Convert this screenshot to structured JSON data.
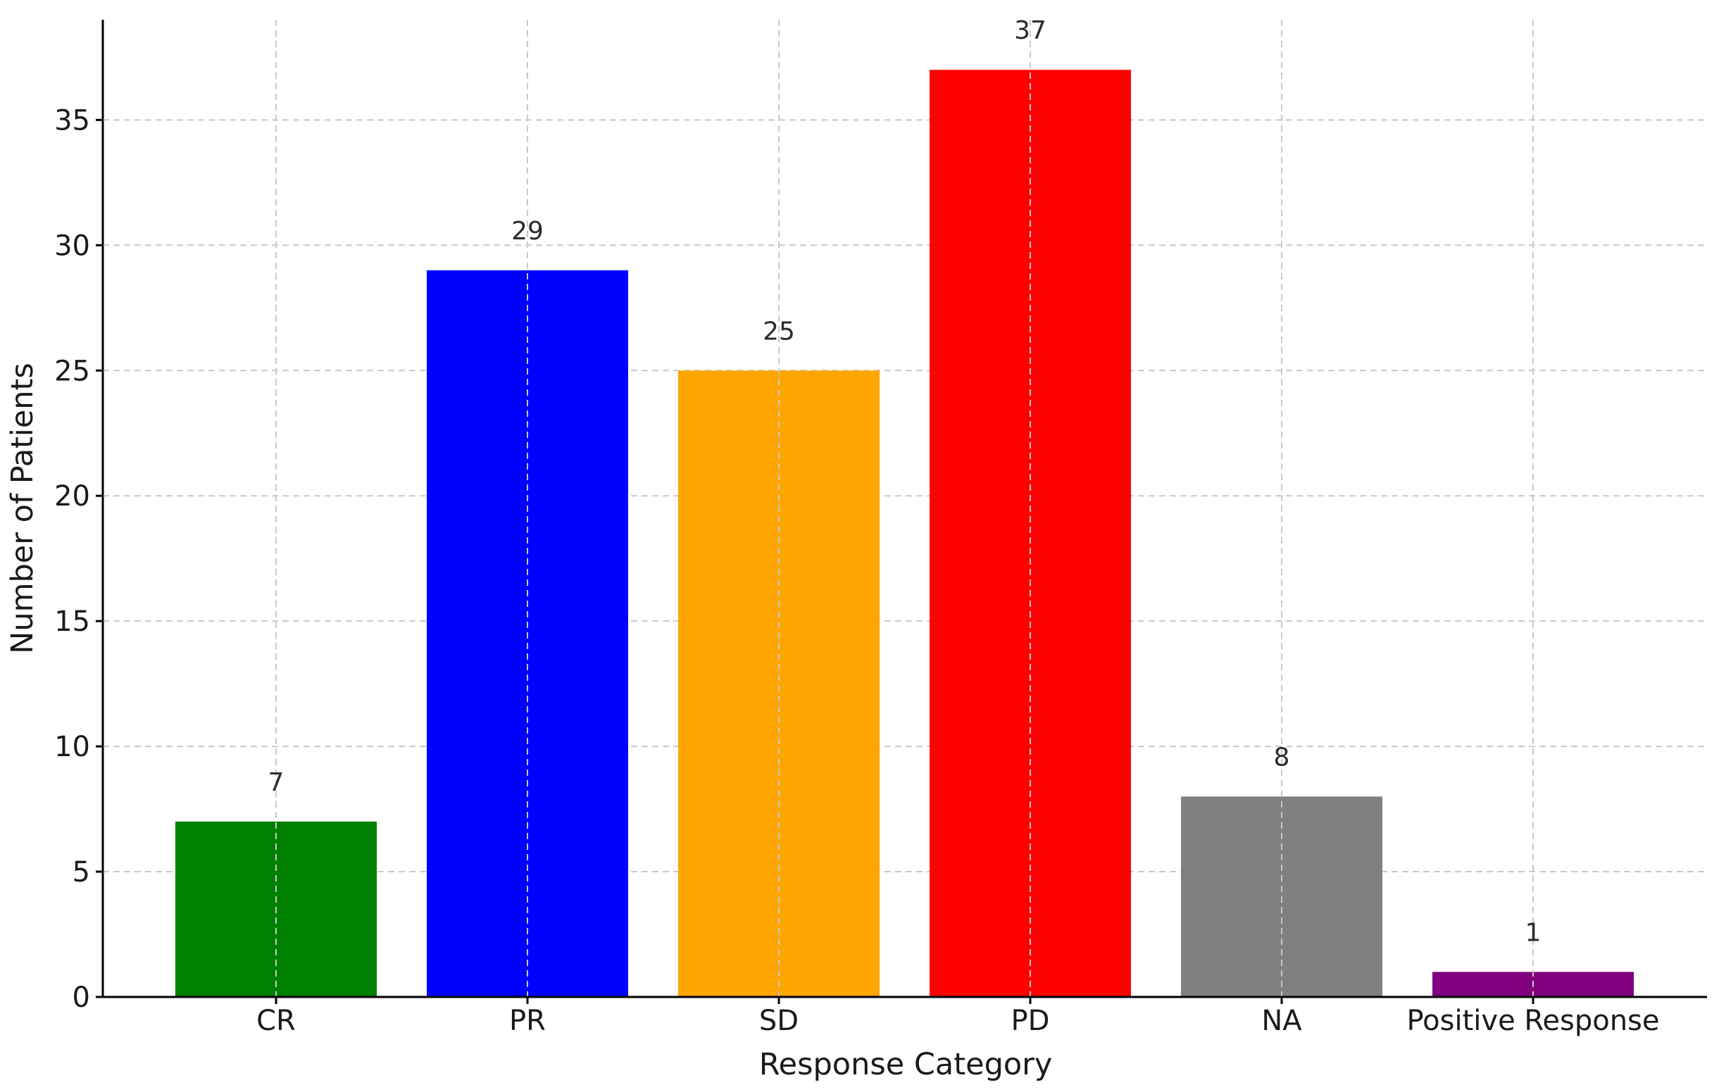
{
  "chart_data": {
    "type": "bar",
    "title": "",
    "xlabel": "Response Category",
    "ylabel": "Number of Patients",
    "categories": [
      "CR",
      "PR",
      "SD",
      "PD",
      "NA",
      "Positive Response"
    ],
    "values": [
      7,
      29,
      25,
      37,
      8,
      1
    ],
    "data_labels": [
      "7",
      "29",
      "25",
      "37",
      "8",
      "1"
    ],
    "colors": [
      "#008000",
      "#0000ff",
      "#ffa500",
      "#ff0000",
      "#808080",
      "#800080"
    ],
    "ylim": [
      0,
      39
    ],
    "yticks": [
      0,
      5,
      10,
      15,
      20,
      25,
      30,
      35
    ],
    "ytick_labels": [
      "0",
      "5",
      "10",
      "15",
      "20",
      "25",
      "30",
      "35"
    ],
    "grid": true,
    "legend": "none"
  }
}
